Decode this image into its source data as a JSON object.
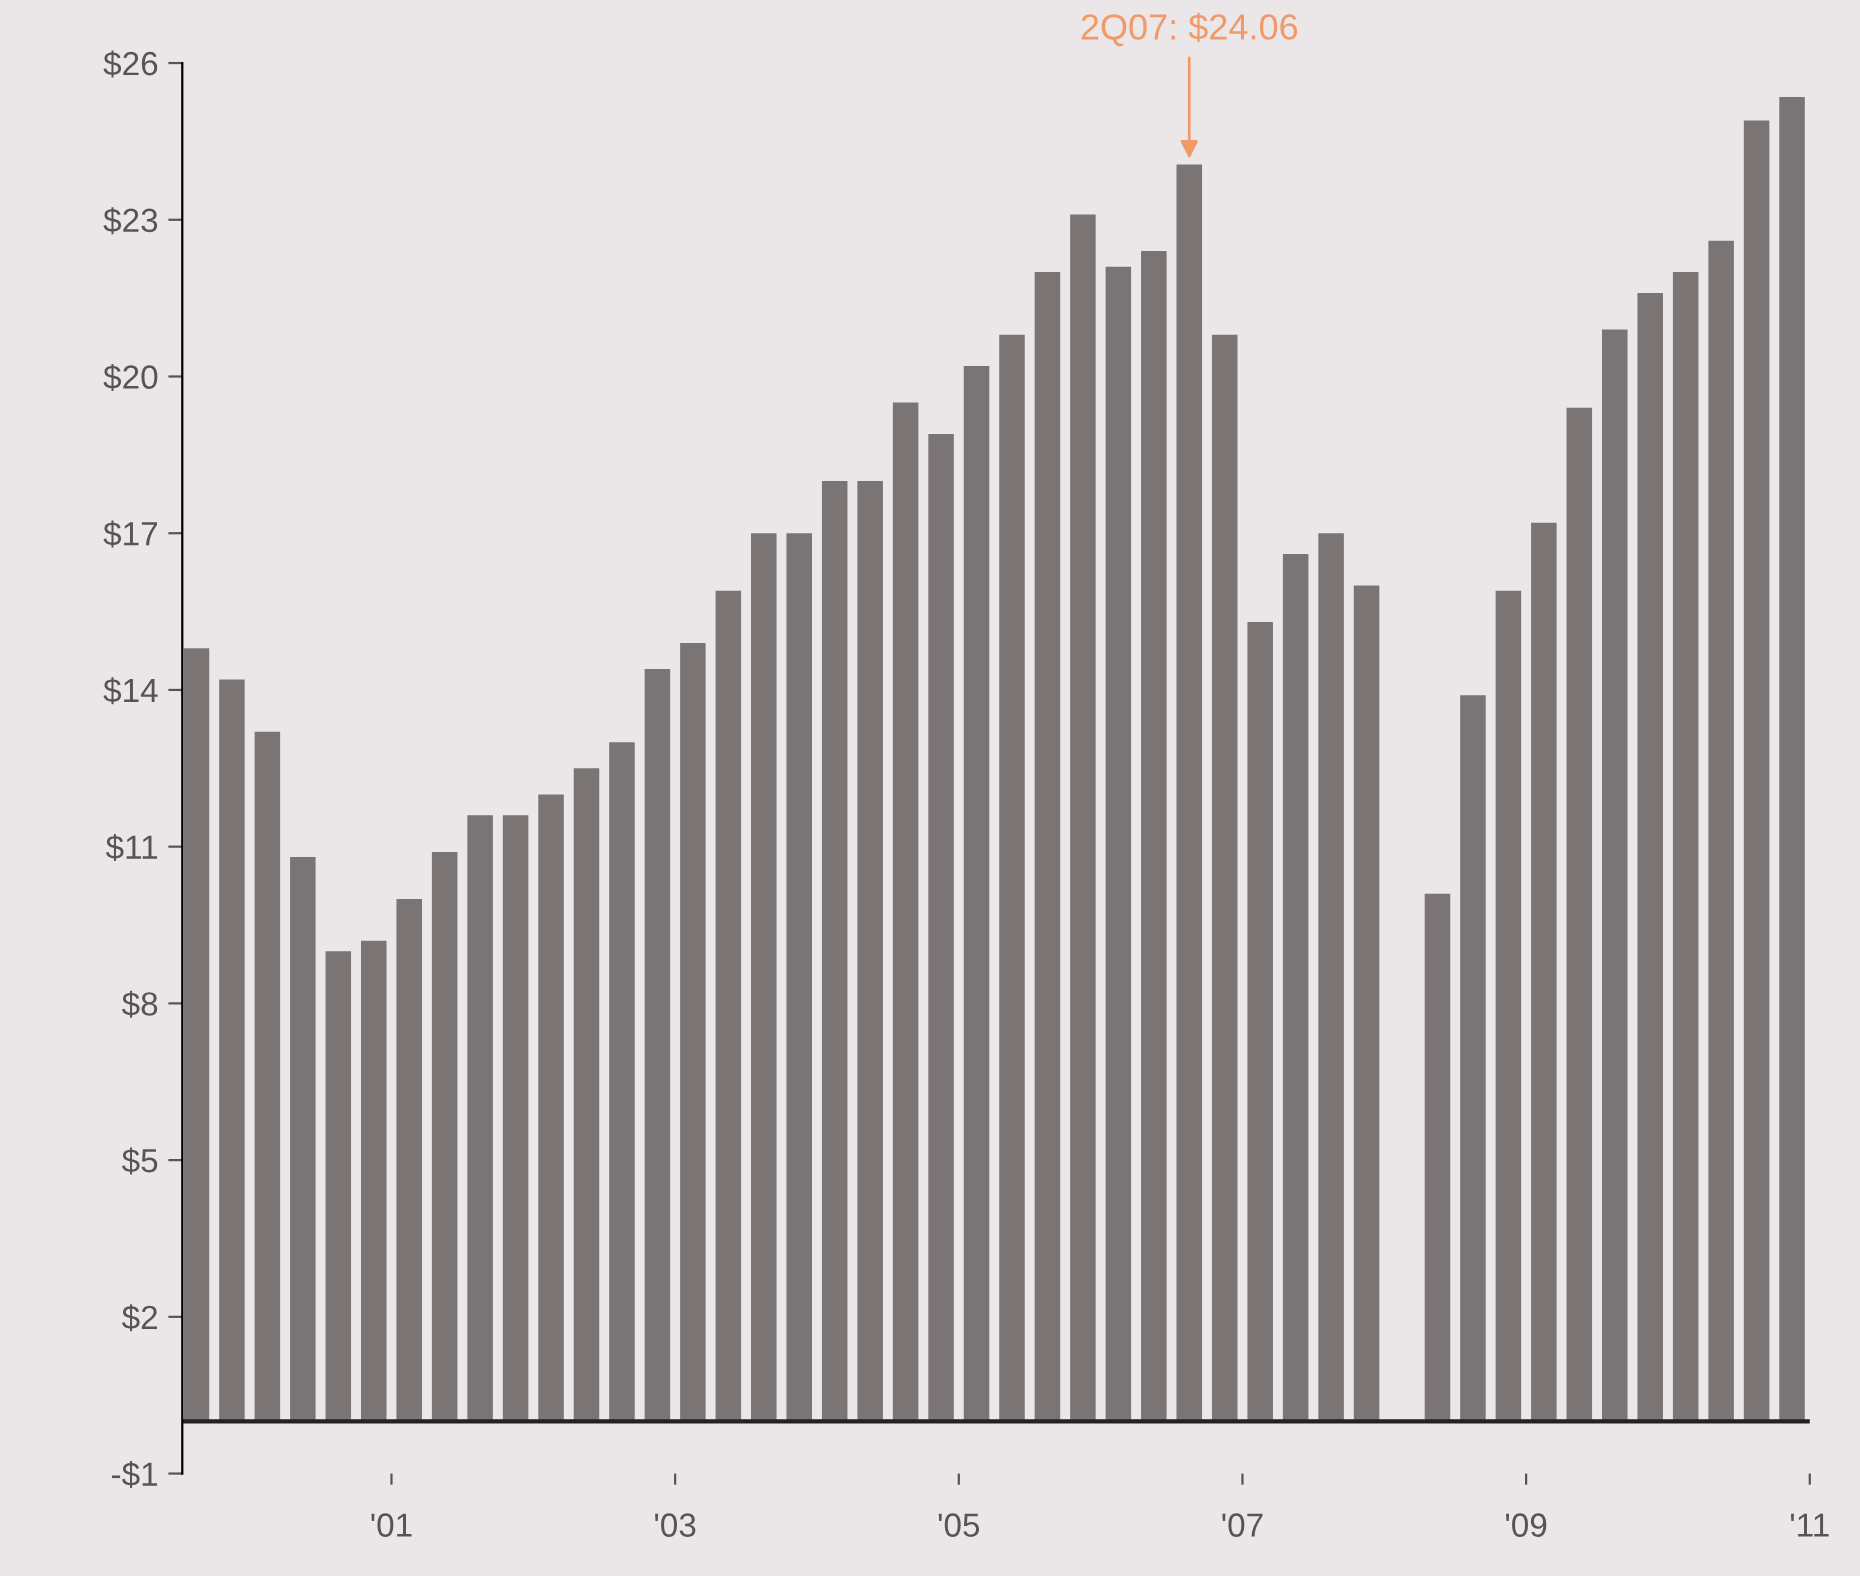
{
  "chart_data": {
    "type": "bar",
    "color": "#7a7475",
    "x": [
      1999.625,
      1999.875,
      2000.125,
      2000.375,
      2000.625,
      2000.875,
      2001.125,
      2001.375,
      2001.625,
      2001.875,
      2002.125,
      2002.375,
      2002.625,
      2002.875,
      2003.125,
      2003.375,
      2003.625,
      2003.875,
      2004.125,
      2004.375,
      2004.625,
      2004.875,
      2005.125,
      2005.375,
      2005.625,
      2005.875,
      2006.125,
      2006.375,
      2006.625,
      2006.875,
      2007.125,
      2007.375,
      2007.625,
      2007.875,
      2008.125,
      2008.375,
      2008.625,
      2008.875,
      2009.125,
      2009.375,
      2009.625,
      2009.875,
      2010.125,
      2010.375,
      2010.625,
      2010.875
    ],
    "values": [
      14.8,
      14.2,
      13.2,
      10.8,
      9.0,
      9.2,
      10.0,
      10.9,
      11.6,
      11.6,
      12.0,
      12.5,
      13.0,
      14.4,
      14.9,
      15.9,
      17.0,
      17.0,
      18.0,
      18.0,
      19.5,
      18.9,
      20.2,
      20.8,
      22.0,
      23.1,
      22.1,
      22.4,
      24.06,
      20.8,
      15.3,
      16.6,
      17.0,
      16.0,
      null,
      10.1,
      13.9,
      15.9,
      17.2,
      19.4,
      20.9,
      21.6,
      22.0,
      22.6,
      24.9,
      25.35
    ],
    "xlim": [
      1999.525,
      2011.0
    ],
    "xticks": [
      {
        "value": 2001,
        "label": "'01"
      },
      {
        "value": 2003,
        "label": "'03"
      },
      {
        "value": 2005,
        "label": "'05"
      },
      {
        "value": 2007,
        "label": "'07"
      },
      {
        "value": 2009,
        "label": "'09"
      },
      {
        "value": 2011,
        "label": "'11"
      }
    ],
    "ylim": [
      -1,
      26
    ],
    "yticks": [
      {
        "value": -1,
        "label": "-$1"
      },
      {
        "value": 2,
        "label": "$2"
      },
      {
        "value": 5,
        "label": "$5"
      },
      {
        "value": 8,
        "label": "$8"
      },
      {
        "value": 11,
        "label": "$11"
      },
      {
        "value": 14,
        "label": "$14"
      },
      {
        "value": 17,
        "label": "$17"
      },
      {
        "value": 20,
        "label": "$20"
      },
      {
        "value": 23,
        "label": "$23"
      },
      {
        "value": 26,
        "label": "$26"
      }
    ],
    "ref_lines": [
      {
        "axis": "y",
        "value": 0,
        "color": "#222222"
      }
    ],
    "annotations": [
      {
        "text": "2Q07: $24.06",
        "x": 2006.625,
        "y": 24.06
      }
    ],
    "grid": false,
    "legend": false
  }
}
